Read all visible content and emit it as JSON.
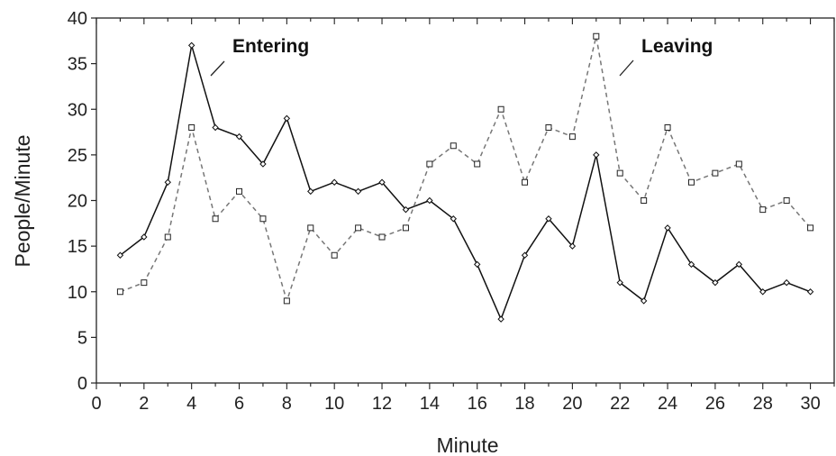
{
  "chart_data": {
    "type": "line",
    "title": "",
    "xlabel": "Minute",
    "ylabel": "People/Minute",
    "xlim": [
      0,
      31
    ],
    "ylim": [
      0,
      40
    ],
    "xticks": [
      0,
      2,
      4,
      6,
      8,
      10,
      12,
      14,
      16,
      18,
      20,
      22,
      24,
      26,
      28,
      30
    ],
    "yticks": [
      0,
      5,
      10,
      15,
      20,
      25,
      30,
      35,
      40
    ],
    "grid": false,
    "legend": "none",
    "x": [
      1,
      2,
      3,
      4,
      5,
      6,
      7,
      8,
      9,
      10,
      11,
      12,
      13,
      14,
      15,
      16,
      17,
      18,
      19,
      20,
      21,
      22,
      23,
      24,
      25,
      26,
      27,
      28,
      29,
      30
    ],
    "series": [
      {
        "name": "Entering",
        "style": "solid",
        "marker": "diamond",
        "color": "#111111",
        "values": [
          14,
          16,
          22,
          37,
          28,
          27,
          24,
          29,
          21,
          22,
          21,
          22,
          19,
          20,
          18,
          13,
          7,
          14,
          18,
          15,
          25,
          11,
          9,
          17,
          13,
          11,
          13,
          10,
          11,
          10
        ]
      },
      {
        "name": "Leaving",
        "style": "dashed",
        "marker": "square",
        "color": "#777777",
        "values": [
          10,
          11,
          16,
          28,
          18,
          21,
          18,
          9,
          17,
          14,
          17,
          16,
          17,
          24,
          26,
          24,
          30,
          22,
          28,
          27,
          38,
          23,
          20,
          28,
          22,
          23,
          24,
          19,
          20,
          17
        ]
      }
    ],
    "annotations": [
      {
        "text": "Entering",
        "series": "Entering",
        "at_x": 4
      },
      {
        "text": "Leaving",
        "series": "Leaving",
        "at_x": 21
      }
    ]
  }
}
